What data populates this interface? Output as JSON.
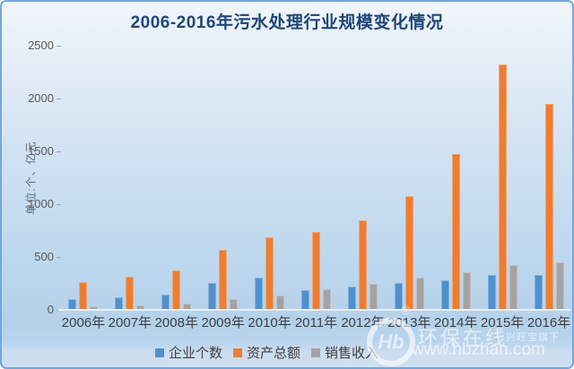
{
  "title": "2006-2016年污水处理行业规模变化情况",
  "chart_data": {
    "type": "bar",
    "title": "2006-2016年污水处理行业规模变化情况",
    "xlabel": "",
    "ylabel": "单位:个、亿元",
    "categories": [
      "2006年",
      "2007年",
      "2008年",
      "2009年",
      "2010年",
      "2011年",
      "2012年",
      "2013年",
      "2014年",
      "2015年",
      "2016年"
    ],
    "series": [
      {
        "name": "企业个数",
        "color": "#4F90CE",
        "values": [
          95,
          110,
          134,
          243,
          297,
          180,
          212,
          249,
          274,
          318,
          318
        ]
      },
      {
        "name": "资产总额",
        "color": "#ED7D31",
        "values": [
          257,
          308,
          362,
          558,
          680,
          730,
          840,
          1072,
          1463,
          2310,
          1943
        ]
      },
      {
        "name": "销售收入",
        "color": "#A5A3A2",
        "values": [
          25,
          38,
          49,
          90,
          124,
          190,
          235,
          298,
          345,
          415,
          440
        ]
      }
    ],
    "ylim": [
      0,
      2500
    ],
    "yticks": [
      0,
      500,
      1000,
      1500,
      2000,
      2500
    ],
    "grid": false,
    "legend_position": "bottom"
  },
  "watermark": {
    "logo_text": "Hb",
    "registered_mark": "®",
    "site_name": "环保在线",
    "site_tagline": "兴旺宝旗下",
    "site_url": "www.hbzhan.com"
  },
  "colors": {
    "title": "#1F4679",
    "border": "#74A7DA",
    "axis_line": "#EAF0F7",
    "tick_label": "#595959"
  }
}
